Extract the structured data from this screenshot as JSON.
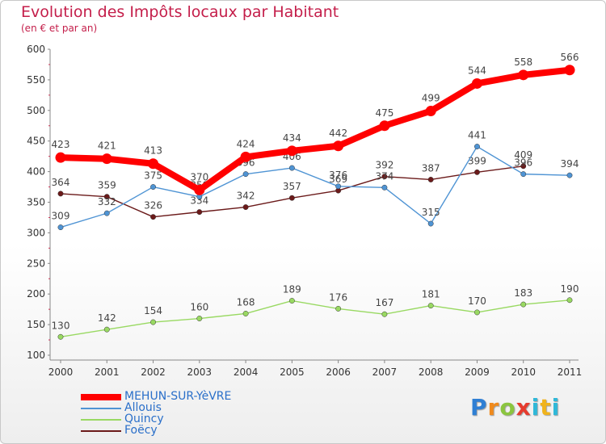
{
  "header": {
    "title": "Evolution des Impôts locaux par Habitant",
    "subtitle": "(en € et par an)"
  },
  "logo": {
    "text": "Proxiti"
  },
  "chart_data": {
    "type": "line",
    "title": "Evolution des Impôts locaux par Habitant",
    "subtitle": "(en € et par an)",
    "xlabel": "",
    "ylabel": "",
    "x": [
      "2000",
      "2001",
      "2002",
      "2003",
      "2004",
      "2005",
      "2006",
      "2007",
      "2008",
      "2009",
      "2010",
      "2011"
    ],
    "ylim": [
      100,
      600
    ],
    "yticks": [
      "100",
      "150",
      "200",
      "250",
      "300",
      "350",
      "400",
      "450",
      "500",
      "550",
      "600"
    ],
    "grid": false,
    "legend_position": "bottom-left",
    "series": [
      {
        "name": "MEHUN-SUR-YèVRE",
        "color": "#ff0000",
        "values": [
          423,
          421,
          413,
          370,
          424,
          434,
          442,
          475,
          499,
          544,
          558,
          566
        ],
        "labels": [
          "423",
          "421",
          "413",
          "370",
          "424",
          "434",
          "442",
          "475",
          "499",
          "544",
          "558",
          "566"
        ]
      },
      {
        "name": "Allouis",
        "color": "#4f94d4",
        "values": [
          309,
          332,
          375,
          359,
          396,
          406,
          376,
          374,
          315,
          441,
          396,
          394
        ],
        "labels": [
          "309",
          "332",
          "375",
          "359",
          "396",
          "406",
          "376",
          "374",
          "315",
          "441",
          "396",
          "394"
        ]
      },
      {
        "name": "Quincy",
        "color": "#99d962",
        "values": [
          130,
          142,
          154,
          160,
          168,
          189,
          176,
          167,
          181,
          170,
          183,
          190
        ],
        "labels": [
          "130",
          "142",
          "154",
          "160",
          "168",
          "189",
          "176",
          "167",
          "181",
          "170",
          "183",
          "190"
        ]
      },
      {
        "name": "Foëcy",
        "color": "#6b1a1a",
        "values": [
          364,
          359,
          326,
          334,
          342,
          357,
          369,
          392,
          387,
          399,
          409,
          null
        ],
        "labels": [
          "364",
          "359",
          "326",
          "334",
          "342",
          "357",
          "369",
          "392",
          "387",
          "399",
          "409",
          ""
        ]
      }
    ]
  }
}
